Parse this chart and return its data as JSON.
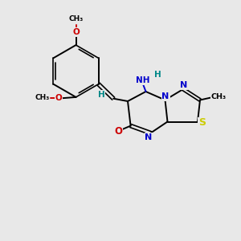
{
  "background_color": "#e8e8e8",
  "bond_color": "#000000",
  "atom_colors": {
    "N": "#0000cc",
    "O": "#cc0000",
    "S": "#cccc00",
    "C": "#000000",
    "H": "#008888"
  },
  "figsize": [
    3.0,
    3.0
  ],
  "dpi": 100,
  "xlim": [
    0,
    10
  ],
  "ylim": [
    0,
    10
  ]
}
